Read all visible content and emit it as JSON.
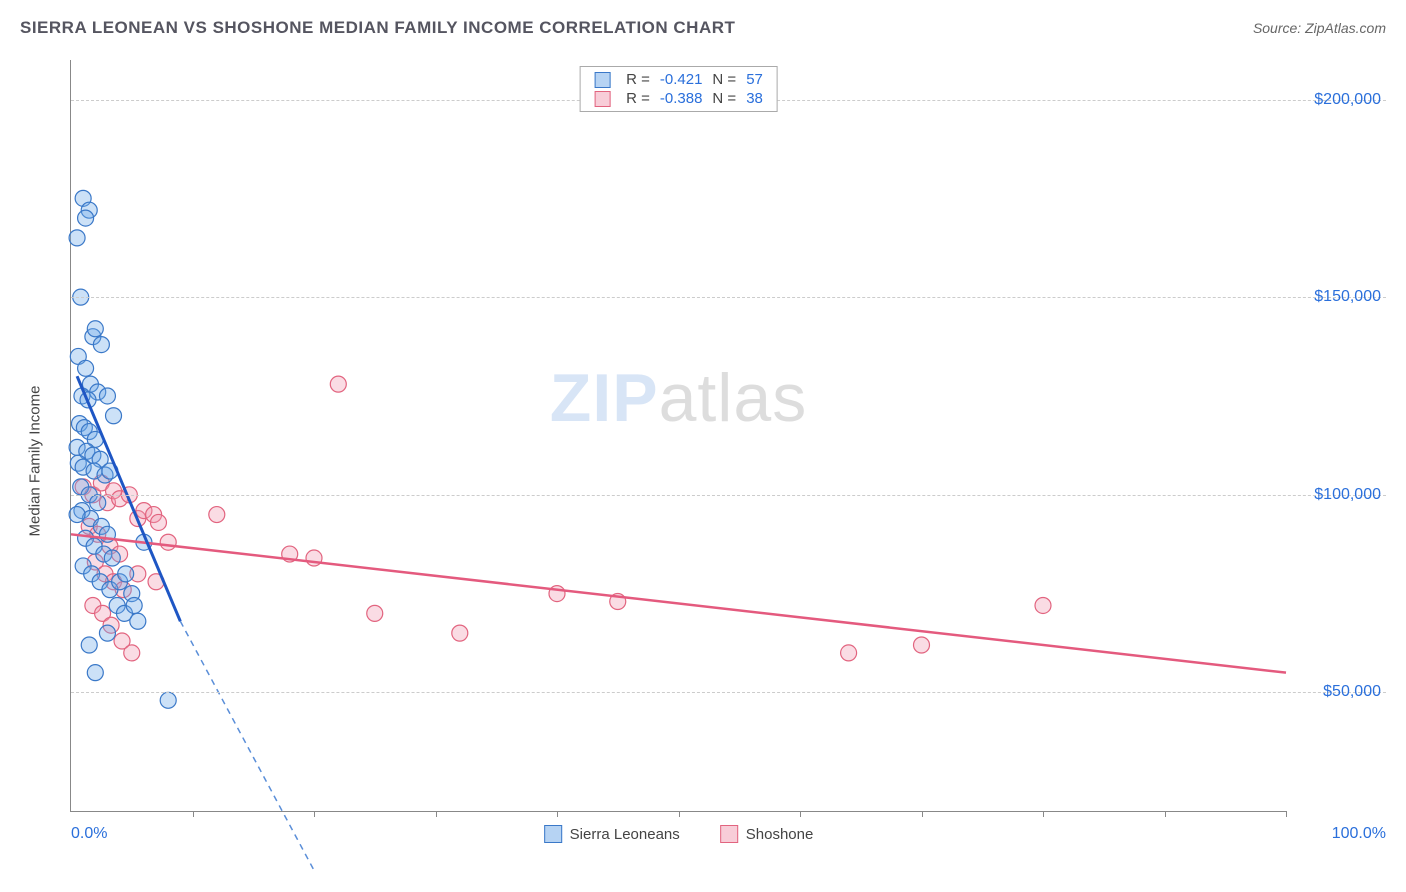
{
  "header": {
    "title": "SIERRA LEONEAN VS SHOSHONE MEDIAN FAMILY INCOME CORRELATION CHART",
    "source": "Source: ZipAtlas.com"
  },
  "chart": {
    "type": "scatter",
    "ylabel": "Median Family Income",
    "xlim": [
      0,
      100
    ],
    "ylim": [
      20000,
      210000
    ],
    "x_axis_label_left": "0.0%",
    "x_axis_label_right": "100.0%",
    "y_ticks": [
      50000,
      100000,
      150000,
      200000
    ],
    "y_tick_labels": [
      "$50,000",
      "$100,000",
      "$150,000",
      "$200,000"
    ],
    "x_minor_ticks": [
      10,
      20,
      30,
      40,
      50,
      60,
      70,
      80,
      90,
      100
    ],
    "background_color": "#ffffff",
    "grid_color": "#cccccc",
    "axis_color": "#888888",
    "tick_label_color": "#2a6fdb",
    "marker_radius": 8,
    "marker_fill_opacity": 0.35,
    "marker_stroke_width": 1.2,
    "watermark": {
      "text1": "ZIP",
      "text2": "atlas"
    }
  },
  "stats": {
    "series1": {
      "r_label": "R =",
      "r": "-0.421",
      "n_label": "N =",
      "n": "57"
    },
    "series2": {
      "r_label": "R =",
      "r": "-0.388",
      "n_label": "N =",
      "n": "38"
    }
  },
  "legend": {
    "series1": "Sierra Leoneans",
    "series2": "Shoshone"
  },
  "series": {
    "s1": {
      "name": "Sierra Leoneans",
      "fill_color": "#6ea8e8",
      "stroke_color": "#3a78c8",
      "line_color": "#1e56c4",
      "dash_color": "#5a8ed8",
      "points": [
        [
          0.5,
          165000
        ],
        [
          1.0,
          175000
        ],
        [
          1.5,
          172000
        ],
        [
          1.2,
          170000
        ],
        [
          0.8,
          150000
        ],
        [
          1.8,
          140000
        ],
        [
          2.0,
          142000
        ],
        [
          2.5,
          138000
        ],
        [
          0.6,
          135000
        ],
        [
          1.2,
          132000
        ],
        [
          1.6,
          128000
        ],
        [
          2.2,
          126000
        ],
        [
          0.9,
          125000
        ],
        [
          1.4,
          124000
        ],
        [
          3.0,
          125000
        ],
        [
          3.5,
          120000
        ],
        [
          0.7,
          118000
        ],
        [
          1.1,
          117000
        ],
        [
          1.5,
          116000
        ],
        [
          2.0,
          114000
        ],
        [
          0.5,
          112000
        ],
        [
          1.3,
          111000
        ],
        [
          1.8,
          110000
        ],
        [
          2.4,
          109000
        ],
        [
          0.6,
          108000
        ],
        [
          1.0,
          107000
        ],
        [
          1.9,
          106000
        ],
        [
          2.8,
          105000
        ],
        [
          3.2,
          106000
        ],
        [
          0.8,
          102000
        ],
        [
          1.5,
          100000
        ],
        [
          2.2,
          98000
        ],
        [
          0.9,
          96000
        ],
        [
          1.6,
          94000
        ],
        [
          2.5,
          92000
        ],
        [
          3.0,
          90000
        ],
        [
          1.2,
          89000
        ],
        [
          1.9,
          87000
        ],
        [
          2.7,
          85000
        ],
        [
          3.4,
          84000
        ],
        [
          1.0,
          82000
        ],
        [
          1.7,
          80000
        ],
        [
          2.4,
          78000
        ],
        [
          3.2,
          76000
        ],
        [
          4.0,
          78000
        ],
        [
          4.5,
          80000
        ],
        [
          5.0,
          75000
        ],
        [
          3.8,
          72000
        ],
        [
          4.4,
          70000
        ],
        [
          5.2,
          72000
        ],
        [
          6.0,
          88000
        ],
        [
          5.5,
          68000
        ],
        [
          2.0,
          55000
        ],
        [
          8.0,
          48000
        ],
        [
          1.5,
          62000
        ],
        [
          3.0,
          65000
        ],
        [
          0.5,
          95000
        ]
      ],
      "trend": {
        "x1": 0.5,
        "y1": 130000,
        "x2": 9,
        "y2": 68000
      },
      "trend_dash": {
        "x1": 9,
        "y1": 68000,
        "x2": 20,
        "y2": 5000
      }
    },
    "s2": {
      "name": "Shoshone",
      "fill_color": "#f29bb1",
      "stroke_color": "#e2647f",
      "line_color": "#e45a7e",
      "points": [
        [
          1.0,
          102000
        ],
        [
          1.8,
          100000
        ],
        [
          2.5,
          103000
        ],
        [
          3.0,
          98000
        ],
        [
          3.5,
          101000
        ],
        [
          4.0,
          99000
        ],
        [
          4.8,
          100000
        ],
        [
          5.5,
          94000
        ],
        [
          6.0,
          96000
        ],
        [
          6.8,
          95000
        ],
        [
          7.2,
          93000
        ],
        [
          8.0,
          88000
        ],
        [
          1.5,
          92000
        ],
        [
          2.2,
          90000
        ],
        [
          3.2,
          87000
        ],
        [
          4.0,
          85000
        ],
        [
          2.0,
          83000
        ],
        [
          2.8,
          80000
        ],
        [
          3.5,
          78000
        ],
        [
          4.3,
          76000
        ],
        [
          1.8,
          72000
        ],
        [
          2.6,
          70000
        ],
        [
          3.3,
          67000
        ],
        [
          4.2,
          63000
        ],
        [
          5.0,
          60000
        ],
        [
          22.0,
          128000
        ],
        [
          12.0,
          95000
        ],
        [
          18.0,
          85000
        ],
        [
          20.0,
          84000
        ],
        [
          25.0,
          70000
        ],
        [
          32.0,
          65000
        ],
        [
          40.0,
          75000
        ],
        [
          45.0,
          73000
        ],
        [
          64.0,
          60000
        ],
        [
          70.0,
          62000
        ],
        [
          80.0,
          72000
        ],
        [
          5.5,
          80000
        ],
        [
          7.0,
          78000
        ]
      ],
      "trend": {
        "x1": 0,
        "y1": 90000,
        "x2": 100,
        "y2": 55000
      }
    }
  }
}
